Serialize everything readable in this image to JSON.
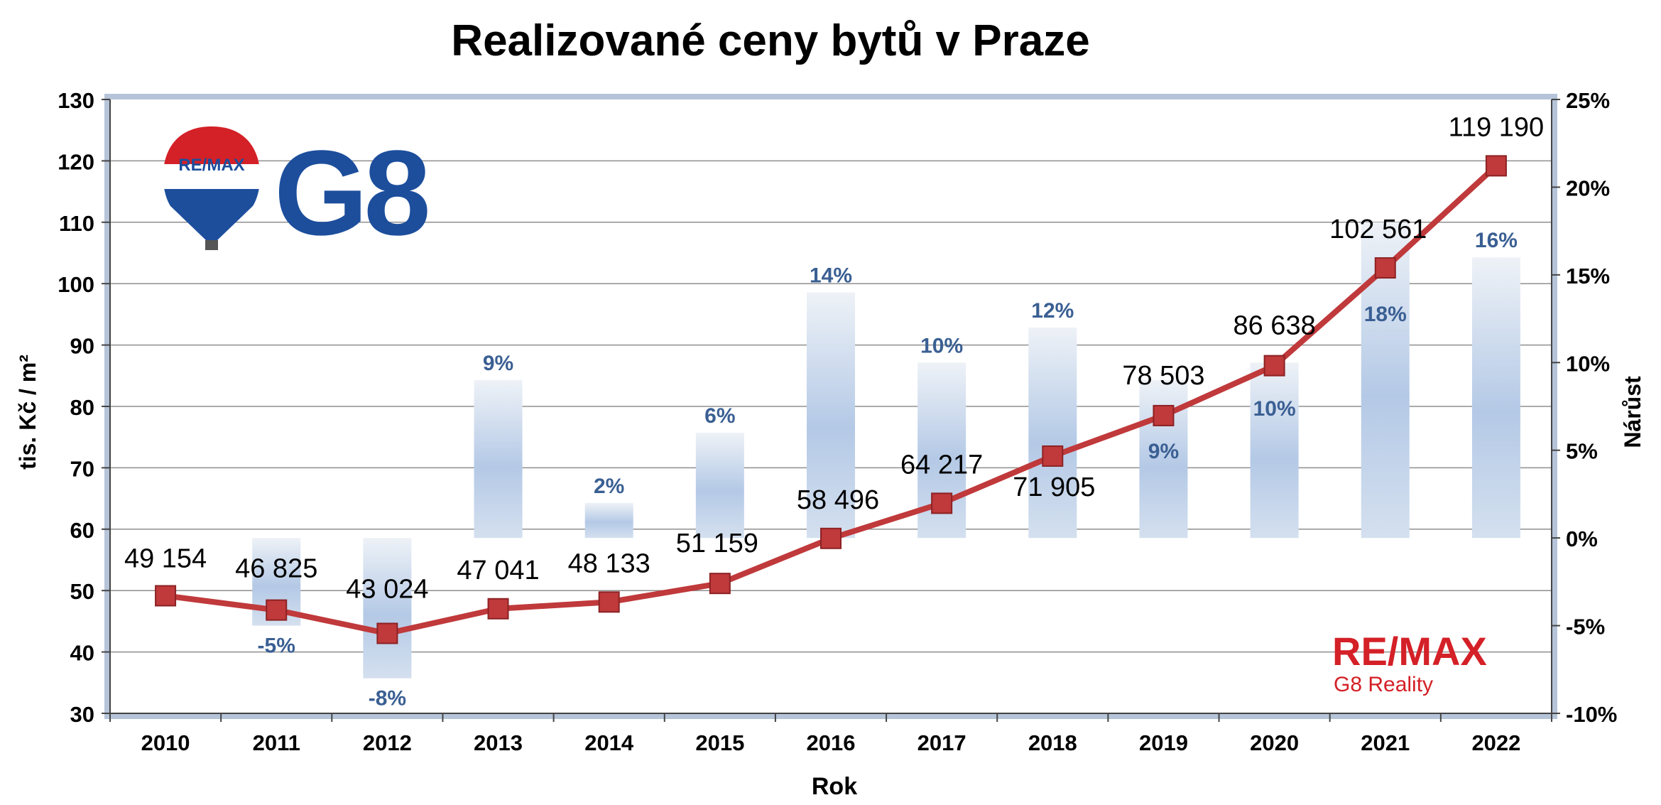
{
  "chart_data": {
    "type": "bar+line",
    "title": "Realizované ceny bytů v Praze",
    "xlabel": "Rok",
    "ylabel_left": "tis. Kč / m²",
    "ylabel_right": "Nárůst",
    "ylim_left": [
      30,
      130
    ],
    "yticks_left": [
      "30",
      "40",
      "50",
      "60",
      "70",
      "80",
      "90",
      "100",
      "110",
      "120",
      "130"
    ],
    "ylim_right": [
      -0.1,
      0.25
    ],
    "yticks_right": [
      "-10%",
      "-5%",
      "0%",
      "5%",
      "10%",
      "15%",
      "20%",
      "25%"
    ],
    "grid": true,
    "categories": [
      "2010",
      "2011",
      "2012",
      "2013",
      "2014",
      "2015",
      "2016",
      "2017",
      "2018",
      "2019",
      "2020",
      "2021",
      "2022"
    ],
    "series": [
      {
        "kind": "line",
        "axis": "left",
        "color": "#c0393b",
        "values": [
          49.154,
          46.825,
          43.024,
          47.041,
          48.133,
          51.159,
          58.496,
          64.217,
          71.905,
          78.503,
          86.638,
          102.561,
          119.19
        ],
        "labels": [
          "49 154",
          "46 825",
          "43 024",
          "47 041",
          "48 133",
          "51 159",
          "58 496",
          "64 217",
          "71 905",
          "78 503",
          "86 638",
          "102 561",
          "119 190"
        ]
      },
      {
        "kind": "bar",
        "axis": "right",
        "color": "#9fbbe0",
        "values": [
          null,
          -0.05,
          -0.08,
          0.09,
          0.02,
          0.06,
          0.14,
          0.1,
          0.12,
          0.09,
          0.1,
          0.18,
          0.16
        ],
        "labels": [
          "",
          "-5%",
          "-8%",
          "9%",
          "2%",
          "6%",
          "14%",
          "10%",
          "12%",
          "9%",
          "10%",
          "18%",
          "16%"
        ]
      }
    ]
  },
  "logos": {
    "balloon_text": "RE/MAX",
    "g8_text": "G8",
    "brand_text": "RE/MAX",
    "brand_sub": "G8 Reality"
  },
  "colors": {
    "remax_blue": "#1c4e9c",
    "remax_red": "#d42027",
    "label_blue": "#3a5f93",
    "plot_border": "#b5c4d8"
  }
}
